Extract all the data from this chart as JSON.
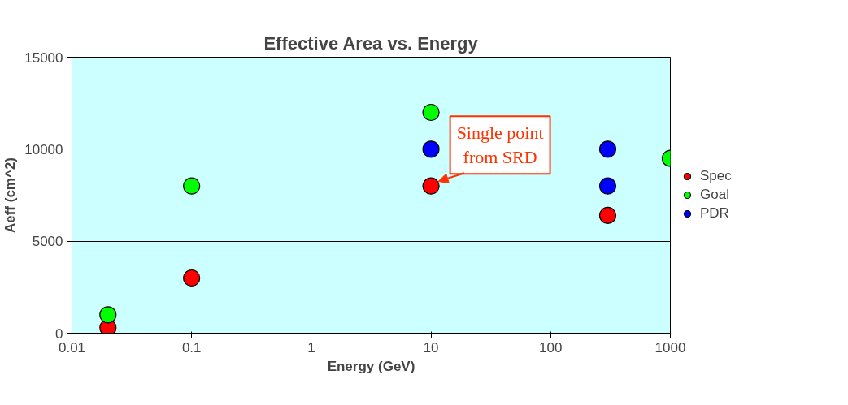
{
  "chart_data": {
    "type": "scatter",
    "title": "Effective Area vs. Energy",
    "xlabel": "Energy (GeV)",
    "ylabel": "Aeff (cm^2)",
    "log": "x",
    "xlim": [
      0.01,
      1000
    ],
    "xticks": [
      0.01,
      0.1,
      1,
      10,
      100,
      1000
    ],
    "ylim": [
      0,
      15000
    ],
    "yticks": [
      0,
      5000,
      10000,
      15000
    ],
    "grid": "y",
    "legend": "right",
    "marker": "circle",
    "series": [
      {
        "name": "Spec",
        "color": "#ff0000",
        "x": [
          0.02,
          0.1,
          10,
          300
        ],
        "values": [
          300,
          3000,
          8000,
          6400
        ]
      },
      {
        "name": "Goal",
        "color": "#00ff00",
        "x": [
          0.02,
          0.1,
          10,
          1000
        ],
        "values": [
          1000,
          8000,
          12000,
          9500
        ]
      },
      {
        "name": "PDR",
        "color": "#0000ff",
        "x": [
          10,
          300,
          300
        ],
        "values": [
          10000,
          10000,
          8000
        ]
      }
    ],
    "annotations": [
      {
        "text": "Single point\nfrom SRD",
        "x": 10,
        "y": 8000
      }
    ]
  }
}
